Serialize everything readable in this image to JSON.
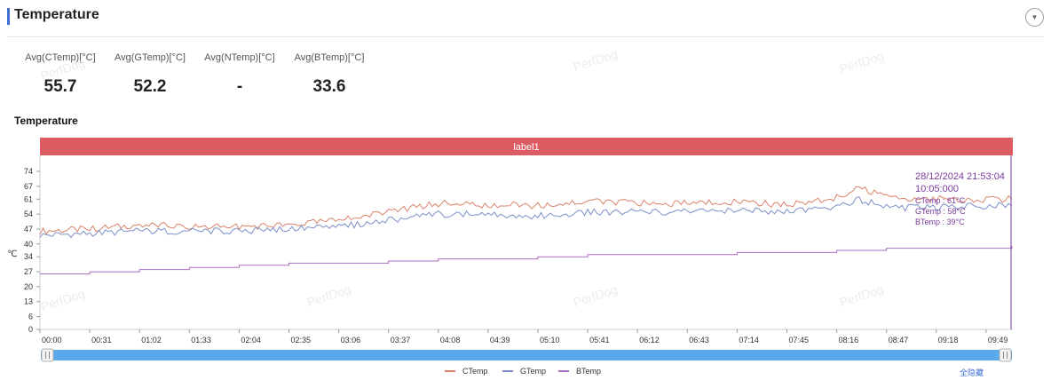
{
  "header": {
    "title": "Temperature"
  },
  "stats": [
    {
      "label": "Avg(CTemp)[°C]",
      "value": "55.7"
    },
    {
      "label": "Avg(GTemp)[°C]",
      "value": "52.2"
    },
    {
      "label": "Avg(NTemp)[°C]",
      "value": "-"
    },
    {
      "label": "Avg(BTemp)[°C]",
      "value": "33.6"
    }
  ],
  "watermark": "PerfDog",
  "chart_section_title": "Temperature",
  "colors": {
    "accent": "#3f6fd1",
    "label_band": "#dc5c64",
    "ctemp": "#d9826b",
    "gtemp": "#7b8fc9",
    "btemp": "#ad6ec6",
    "tooltip": "#7a3a9b",
    "scrollbar": "#5aa9ea"
  },
  "chart_data": {
    "type": "line",
    "title": "",
    "band_label": "label1",
    "ylabel": "℃",
    "ylim": [
      0,
      74
    ],
    "y_ticks": [
      "0",
      "6",
      "13",
      "20",
      "27",
      "34",
      "40",
      "47",
      "54",
      "61",
      "67",
      "74"
    ],
    "x_ticks": [
      "00:00",
      "00:31",
      "01:02",
      "01:33",
      "02:04",
      "02:35",
      "03:06",
      "03:37",
      "04:08",
      "04:39",
      "05:10",
      "05:41",
      "06:12",
      "06:43",
      "07:14",
      "07:45",
      "08:16",
      "08:47",
      "09:18",
      "09:49"
    ],
    "x_unit_seconds_per_tick": 31,
    "x_range_seconds": [
      0,
      605
    ],
    "series": [
      {
        "name": "CTemp",
        "x": [
          0,
          31,
          62,
          93,
          124,
          155,
          186,
          217,
          248,
          279,
          310,
          341,
          372,
          403,
          434,
          465,
          496,
          510,
          527,
          558,
          589,
          605
        ],
        "values": [
          46,
          47,
          49,
          48,
          48,
          49,
          51,
          55,
          59,
          58,
          58,
          60,
          59,
          59,
          60,
          58,
          62,
          66,
          62,
          61,
          61,
          61
        ]
      },
      {
        "name": "GTemp",
        "x": [
          0,
          31,
          62,
          93,
          124,
          155,
          186,
          217,
          248,
          279,
          310,
          341,
          372,
          403,
          434,
          465,
          496,
          510,
          527,
          558,
          589,
          605
        ],
        "values": [
          44,
          45,
          46,
          46,
          46,
          47,
          48,
          51,
          54,
          54,
          53,
          55,
          55,
          55,
          56,
          55,
          57,
          61,
          57,
          57,
          58,
          58
        ]
      },
      {
        "name": "BTemp",
        "x": [
          0,
          31,
          62,
          93,
          124,
          155,
          186,
          217,
          248,
          279,
          310,
          341,
          372,
          403,
          434,
          465,
          496,
          527,
          558,
          589,
          605
        ],
        "values": [
          26,
          27,
          28,
          29,
          30,
          31,
          31,
          32,
          33,
          33,
          34,
          35,
          35,
          35,
          36,
          36,
          37,
          38,
          38,
          38,
          39
        ]
      }
    ],
    "tooltip": {
      "datetime": "28/12/2024 21:53:04",
      "time": "10:05:000",
      "lines": [
        "CTemp : 61°C",
        "GTemp : 58°C",
        "BTemp : 39°C"
      ]
    },
    "legend": [
      "CTemp",
      "GTemp",
      "BTemp"
    ],
    "legend_position": "bottom",
    "hide_all_label": "全隐藏",
    "grid": false
  }
}
